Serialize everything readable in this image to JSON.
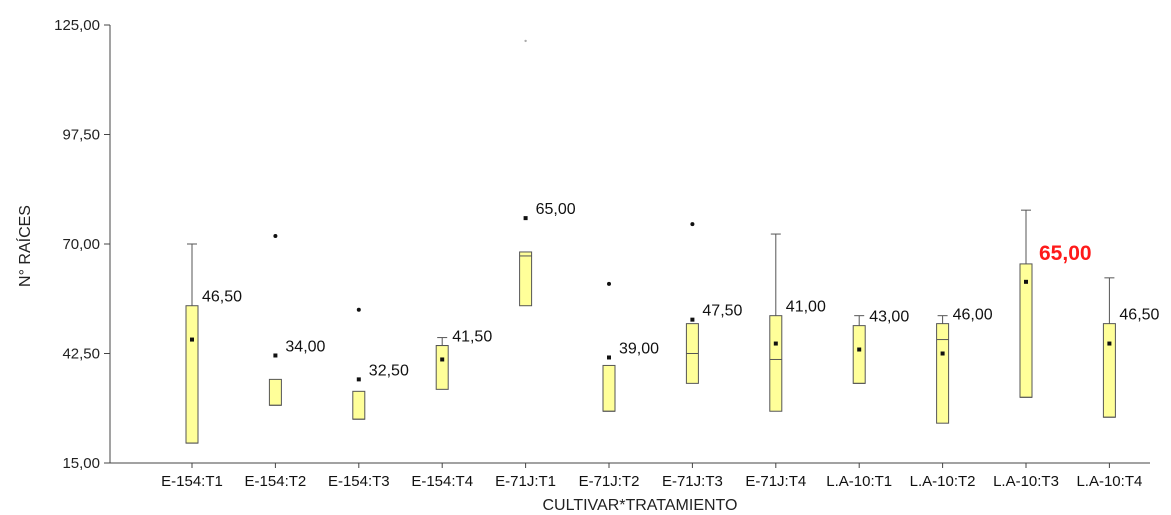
{
  "chart_data": {
    "type": "boxplot",
    "xlabel": "CULTIVAR*TRATAMIENTO",
    "ylabel": "N° RAÍCES",
    "ylim": [
      15,
      125
    ],
    "yticks": [
      "15,00",
      "42,50",
      "70,00",
      "97,50",
      "125,00"
    ],
    "ytick_values": [
      15,
      42.5,
      70,
      97.5,
      125
    ],
    "box_fill": "#ffff99",
    "box_stroke": "#555555",
    "highlight_color": "#ff1a1a",
    "grid": false,
    "categories": [
      {
        "label": "E-154:T1",
        "q1": 20,
        "median": 20,
        "q3": 54.5,
        "whisker_low": 20,
        "whisker_high": 70,
        "mean": 46,
        "outliers": [],
        "annotation": "46,50",
        "highlight": false
      },
      {
        "label": "E-154:T2",
        "q1": 29.5,
        "median": 29.5,
        "q3": 36,
        "whisker_low": 29.5,
        "whisker_high": 36,
        "mean": 42,
        "outliers": [
          72
        ],
        "annotation": "34,00",
        "highlight": false
      },
      {
        "label": "E-154:T3",
        "q1": 26,
        "median": 26,
        "q3": 33,
        "whisker_low": 26,
        "whisker_high": 33,
        "mean": 36,
        "outliers": [
          53.5
        ],
        "annotation": "32,50",
        "highlight": false
      },
      {
        "label": "E-154:T4",
        "q1": 33.5,
        "median": 44.5,
        "q3": 44.5,
        "whisker_low": 33.5,
        "whisker_high": 46.5,
        "mean": 41,
        "outliers": [],
        "annotation": "41,50",
        "highlight": false
      },
      {
        "label": "E-71J:T1",
        "q1": 54.5,
        "median": 67,
        "q3": 68,
        "whisker_low": 54.5,
        "whisker_high": 68,
        "mean": 76.5,
        "outliers": [
          121
        ],
        "annotation": "65,00",
        "highlight": false
      },
      {
        "label": "E-71J:T2",
        "q1": 28,
        "median": 28,
        "q3": 39.5,
        "whisker_low": 28,
        "whisker_high": 39.5,
        "mean": 41.5,
        "outliers": [
          60
        ],
        "annotation": "39,00",
        "highlight": false
      },
      {
        "label": "E-71J:T3",
        "q1": 35,
        "median": 42.5,
        "q3": 50,
        "whisker_low": 35,
        "whisker_high": 50,
        "mean": 51,
        "outliers": [
          75
        ],
        "annotation": "47,50",
        "highlight": false
      },
      {
        "label": "E-71J:T4",
        "q1": 28,
        "median": 41,
        "q3": 52,
        "whisker_low": 28,
        "whisker_high": 72.5,
        "mean": 45,
        "outliers": [],
        "annotation": "41,00",
        "highlight": false
      },
      {
        "label": "L.A-10:T1",
        "q1": 35,
        "median": 35,
        "q3": 49.5,
        "whisker_low": 35,
        "whisker_high": 52,
        "mean": 43.5,
        "outliers": [],
        "annotation": "43,00",
        "highlight": false
      },
      {
        "label": "L.A-10:T2",
        "q1": 25,
        "median": 46,
        "q3": 50,
        "whisker_low": 25,
        "whisker_high": 52,
        "mean": 42.5,
        "outliers": [],
        "annotation": "46,00",
        "highlight": false
      },
      {
        "label": "L.A-10:T3",
        "q1": 31.5,
        "median": 31.5,
        "q3": 65,
        "whisker_low": 31.5,
        "whisker_high": 78.5,
        "mean": 60.5,
        "outliers": [],
        "annotation": "65,00",
        "highlight": true
      },
      {
        "label": "L.A-10:T4",
        "q1": 26.5,
        "median": 26.5,
        "q3": 50,
        "whisker_low": 26.5,
        "whisker_high": 61.5,
        "mean": 45,
        "outliers": [],
        "annotation": "46,50",
        "highlight": false
      }
    ]
  }
}
